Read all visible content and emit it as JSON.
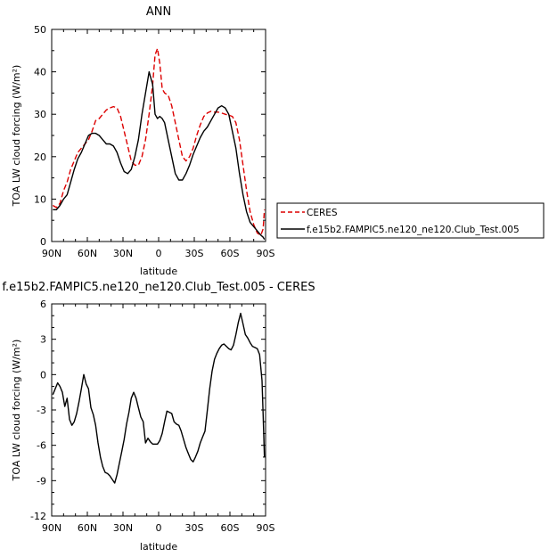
{
  "chart_data": [
    {
      "type": "line",
      "title": "ANN",
      "xlabel": "latitude",
      "ylabel": "TOA LW cloud forcing (W/m²)",
      "xlim": [
        90,
        -90
      ],
      "ylim": [
        0,
        50
      ],
      "xticks": [
        90,
        60,
        30,
        0,
        -30,
        -60,
        -90
      ],
      "xtick_labels": [
        "90N",
        "60N",
        "30N",
        "0",
        "30S",
        "60S",
        "90S"
      ],
      "yticks": [
        0,
        10,
        20,
        30,
        40,
        50
      ],
      "ytick_labels": [
        "0",
        "10",
        "20",
        "30",
        "40",
        "50"
      ],
      "legend": {
        "placement": "right",
        "entries": [
          "CERES",
          "f.e15b2.FAMPIC5.ne120_ne120.Club_Test.005"
        ]
      },
      "series": [
        {
          "name": "CERES",
          "color": "#dd0000",
          "dash": "dashed",
          "x": [
            89,
            86,
            83,
            80,
            77,
            74,
            71,
            68,
            65,
            62,
            59,
            56,
            53,
            50,
            47,
            44,
            41,
            38,
            35,
            32,
            29,
            26,
            23,
            20,
            17,
            14,
            11,
            8,
            5,
            3,
            1,
            -1,
            -3,
            -5,
            -8,
            -11,
            -14,
            -17,
            -20,
            -23,
            -26,
            -29,
            -32,
            -35,
            -38,
            -41,
            -44,
            -47,
            -50,
            -53,
            -56,
            -59,
            -62,
            -65,
            -68,
            -71,
            -74,
            -77,
            -80,
            -83,
            -86,
            -88,
            -89
          ],
          "y": [
            8.5,
            8,
            9,
            12,
            14,
            17,
            19,
            21,
            22,
            23,
            24,
            26,
            28.5,
            29,
            30,
            31,
            31.5,
            31.8,
            31.5,
            29.5,
            26,
            22.5,
            19,
            18,
            18,
            20,
            24,
            30,
            37,
            44,
            45.5,
            42,
            36,
            35,
            34.5,
            32,
            28,
            24,
            20,
            19,
            20,
            22,
            25,
            27.5,
            29.5,
            30.3,
            30.7,
            30.5,
            30.5,
            30.3,
            30,
            29.8,
            29.5,
            28,
            24,
            18,
            12,
            7,
            4,
            2,
            1.5,
            3,
            7.5
          ]
        },
        {
          "name": "f.e15b2.FAMPIC5.ne120_ne120.Club_Test.005",
          "color": "#000000",
          "dash": "solid",
          "x": [
            89,
            86,
            83,
            80,
            77,
            74,
            71,
            68,
            65,
            62,
            59,
            56,
            53,
            50,
            47,
            44,
            41,
            38,
            35,
            32,
            29,
            26,
            23,
            20,
            17,
            14,
            11,
            8,
            5,
            3,
            1,
            -1,
            -3,
            -5,
            -8,
            -11,
            -14,
            -17,
            -20,
            -23,
            -26,
            -29,
            -32,
            -35,
            -38,
            -41,
            -44,
            -47,
            -50,
            -53,
            -56,
            -59,
            -62,
            -65,
            -68,
            -71,
            -74,
            -77,
            -80,
            -83,
            -86,
            -88,
            -89
          ],
          "y": [
            7.5,
            7.5,
            8.5,
            10,
            11,
            14,
            17,
            19.5,
            21,
            23,
            25,
            25.5,
            25.5,
            25,
            24,
            23,
            23,
            22.5,
            21,
            18.5,
            16.5,
            16,
            17,
            20,
            24,
            30,
            35,
            40,
            37,
            30,
            29,
            29.5,
            29,
            28,
            24,
            20,
            16,
            14.5,
            14.5,
            16,
            18,
            20.5,
            22.5,
            24.5,
            26,
            27,
            28.5,
            30,
            31.5,
            32,
            31.5,
            30,
            26,
            22,
            16,
            11,
            7,
            4.5,
            3.5,
            2.5,
            1.5,
            1,
            0.5
          ]
        }
      ]
    },
    {
      "type": "line",
      "title": "f.e15b2.FAMPIC5.ne120_ne120.Club_Test.005 - CERES",
      "xlabel": "latitude",
      "ylabel": "TOA LW cloud forcing (W/m²)",
      "xlim": [
        90,
        -90
      ],
      "ylim": [
        -12,
        6
      ],
      "xticks": [
        90,
        60,
        30,
        0,
        -30,
        -60,
        -90
      ],
      "xtick_labels": [
        "90N",
        "60N",
        "30N",
        "0",
        "30S",
        "60S",
        "90S"
      ],
      "yticks": [
        -12,
        -9,
        -6,
        -3,
        0,
        3,
        6
      ],
      "ytick_labels": [
        "-12",
        "-9",
        "-6",
        "-3",
        "0",
        "3",
        "6"
      ],
      "series": [
        {
          "color": "#000000",
          "dash": "solid",
          "x": [
            89,
            87,
            85,
            83,
            81,
            79,
            77,
            75,
            73,
            71,
            69,
            67,
            65,
            63,
            61,
            59,
            57,
            55,
            53,
            51,
            49,
            47,
            45,
            43,
            41,
            39,
            37,
            35,
            33,
            31,
            29,
            27,
            25,
            23,
            21,
            19,
            17,
            15,
            13,
            11,
            9,
            7,
            5,
            3,
            1,
            -1,
            -3,
            -5,
            -7,
            -9,
            -11,
            -13,
            -15,
            -17,
            -19,
            -21,
            -23,
            -25,
            -27,
            -29,
            -31,
            -33,
            -35,
            -37,
            -39,
            -41,
            -43,
            -45,
            -47,
            -49,
            -51,
            -53,
            -55,
            -57,
            -59,
            -61,
            -63,
            -65,
            -67,
            -69,
            -71,
            -73,
            -75,
            -77,
            -79,
            -81,
            -83,
            -85,
            -87,
            -88,
            -89
          ],
          "y": [
            -1.7,
            -1.2,
            -0.7,
            -1.0,
            -1.5,
            -2.7,
            -2.0,
            -3.8,
            -4.3,
            -4.0,
            -3.3,
            -2.3,
            -1.2,
            0.0,
            -0.8,
            -1.2,
            -2.8,
            -3.4,
            -4.3,
            -5.8,
            -7.0,
            -7.8,
            -8.3,
            -8.4,
            -8.6,
            -8.9,
            -9.2,
            -8.5,
            -7.5,
            -6.5,
            -5.5,
            -4.2,
            -3.2,
            -2.0,
            -1.5,
            -2.0,
            -2.8,
            -3.6,
            -4.0,
            -5.8,
            -5.4,
            -5.7,
            -5.9,
            -5.9,
            -5.9,
            -5.6,
            -5.0,
            -4.0,
            -3.1,
            -3.2,
            -3.3,
            -4.0,
            -4.2,
            -4.3,
            -4.8,
            -5.5,
            -6.2,
            -6.7,
            -7.2,
            -7.4,
            -7.0,
            -6.5,
            -5.8,
            -5.3,
            -4.8,
            -3.0,
            -1.2,
            0.3,
            1.3,
            1.8,
            2.2,
            2.5,
            2.6,
            2.4,
            2.2,
            2.1,
            2.5,
            3.4,
            4.4,
            5.2,
            4.3,
            3.4,
            3.1,
            2.7,
            2.4,
            2.3,
            2.2,
            1.7,
            -0.5,
            -3.5,
            -7.0
          ]
        }
      ]
    }
  ]
}
